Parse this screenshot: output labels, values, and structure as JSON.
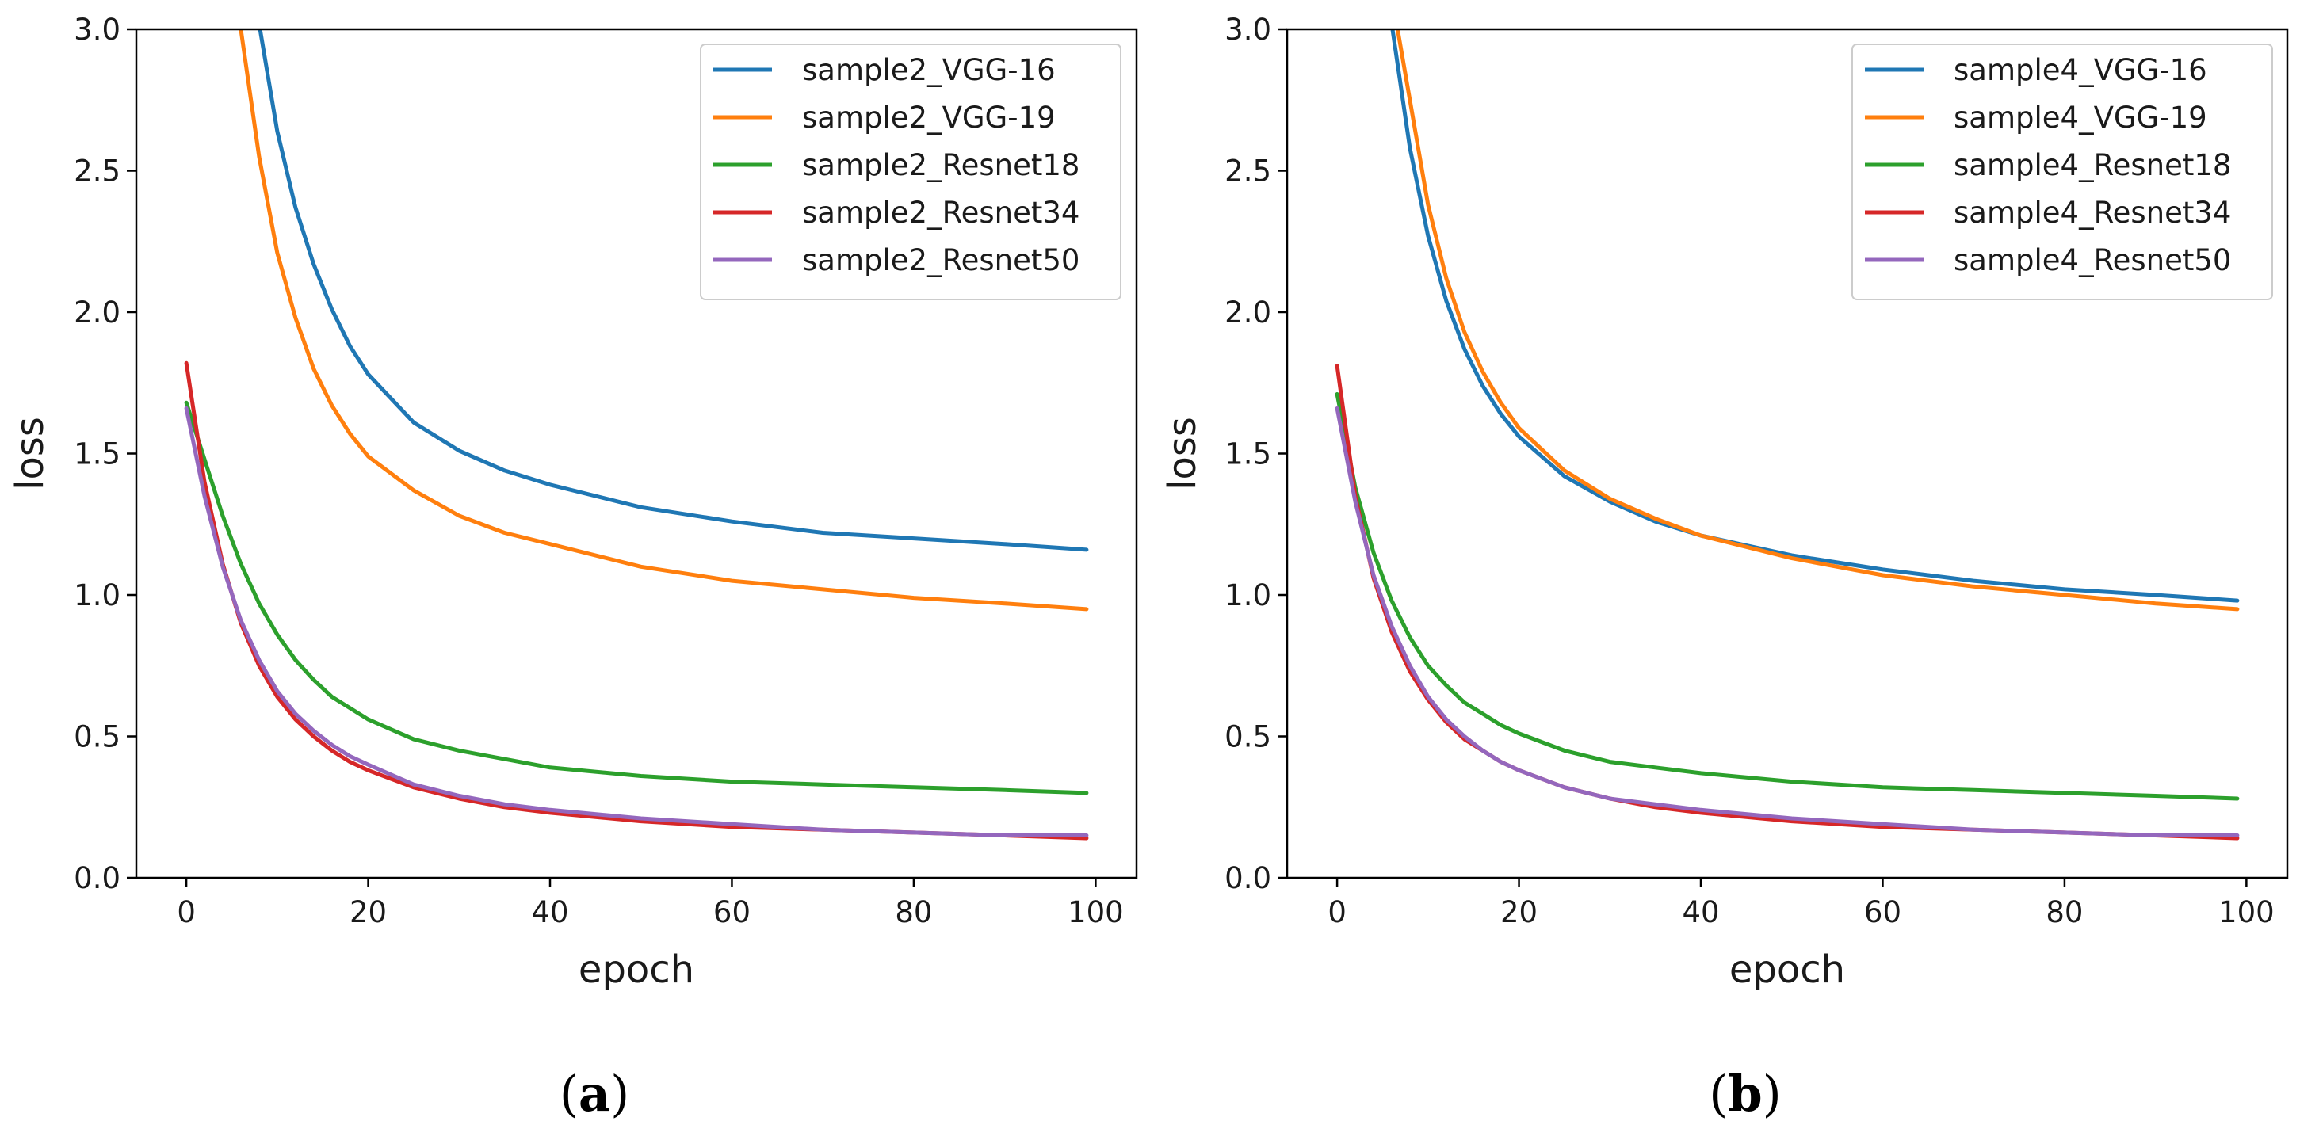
{
  "chart_data": [
    {
      "type": "line",
      "caption_letter": "a",
      "xlabel": "epoch",
      "ylabel": "loss",
      "xlim": [
        -5.5,
        104.5
      ],
      "ylim": [
        0,
        3.0
      ],
      "xticks": [
        0,
        20,
        40,
        60,
        80,
        100
      ],
      "yticks": [
        0.0,
        0.5,
        1.0,
        1.5,
        2.0,
        2.5,
        3.0
      ],
      "ytick_labels": [
        "0.0",
        "0.5",
        "1.0",
        "1.5",
        "2.0",
        "2.5",
        "3.0"
      ],
      "legend_position": "top-right",
      "grid": false,
      "x": [
        0,
        2,
        4,
        6,
        8,
        10,
        12,
        14,
        16,
        18,
        20,
        25,
        30,
        35,
        40,
        50,
        60,
        70,
        80,
        90,
        99
      ],
      "series": [
        {
          "name": "sample2_VGG-16",
          "color": "#1f77b4",
          "values": [
            null,
            null,
            null,
            null,
            3.02,
            2.64,
            2.37,
            2.17,
            2.01,
            1.88,
            1.78,
            1.61,
            1.51,
            1.44,
            1.39,
            1.31,
            1.26,
            1.22,
            1.2,
            1.18,
            1.16
          ]
        },
        {
          "name": "sample2_VGG-19",
          "color": "#ff7f0e",
          "values": [
            null,
            null,
            null,
            3.0,
            2.55,
            2.21,
            1.98,
            1.8,
            1.67,
            1.57,
            1.49,
            1.37,
            1.28,
            1.22,
            1.18,
            1.1,
            1.05,
            1.02,
            0.99,
            0.97,
            0.95
          ]
        },
        {
          "name": "sample2_Resnet18",
          "color": "#2ca02c",
          "values": [
            1.68,
            1.48,
            1.28,
            1.11,
            0.97,
            0.86,
            0.77,
            0.7,
            0.64,
            0.6,
            0.56,
            0.49,
            0.45,
            0.42,
            0.39,
            0.36,
            0.34,
            0.33,
            0.32,
            0.31,
            0.3
          ]
        },
        {
          "name": "sample2_Resnet34",
          "color": "#d62728",
          "values": [
            1.82,
            1.4,
            1.11,
            0.9,
            0.75,
            0.64,
            0.56,
            0.5,
            0.45,
            0.41,
            0.38,
            0.32,
            0.28,
            0.25,
            0.23,
            0.2,
            0.18,
            0.17,
            0.16,
            0.15,
            0.14
          ]
        },
        {
          "name": "sample2_Resnet50",
          "color": "#9467bd",
          "values": [
            1.66,
            1.35,
            1.1,
            0.91,
            0.77,
            0.66,
            0.58,
            0.52,
            0.47,
            0.43,
            0.4,
            0.33,
            0.29,
            0.26,
            0.24,
            0.21,
            0.19,
            0.17,
            0.16,
            0.15,
            0.15
          ]
        }
      ]
    },
    {
      "type": "line",
      "caption_letter": "b",
      "xlabel": "epoch",
      "ylabel": "loss",
      "xlim": [
        -5.5,
        104.5
      ],
      "ylim": [
        0,
        3.0
      ],
      "xticks": [
        0,
        20,
        40,
        60,
        80,
        100
      ],
      "yticks": [
        0.0,
        0.5,
        1.0,
        1.5,
        2.0,
        2.5,
        3.0
      ],
      "ytick_labels": [
        "0.0",
        "0.5",
        "1.0",
        "1.5",
        "2.0",
        "2.5",
        "3.0"
      ],
      "legend_position": "top-right",
      "grid": false,
      "x": [
        0,
        2,
        4,
        6,
        8,
        10,
        12,
        14,
        16,
        18,
        20,
        25,
        30,
        35,
        40,
        50,
        60,
        70,
        80,
        90,
        99
      ],
      "series": [
        {
          "name": "sample4_VGG-16",
          "color": "#1f77b4",
          "values": [
            null,
            null,
            null,
            3.02,
            2.58,
            2.27,
            2.04,
            1.87,
            1.74,
            1.64,
            1.56,
            1.42,
            1.33,
            1.26,
            1.21,
            1.14,
            1.09,
            1.05,
            1.02,
            1.0,
            0.98
          ]
        },
        {
          "name": "sample4_VGG-19",
          "color": "#ff7f0e",
          "values": [
            null,
            null,
            null,
            null,
            2.75,
            2.38,
            2.12,
            1.93,
            1.79,
            1.68,
            1.59,
            1.44,
            1.34,
            1.27,
            1.21,
            1.13,
            1.07,
            1.03,
            1.0,
            0.97,
            0.95
          ]
        },
        {
          "name": "sample4_Resnet18",
          "color": "#2ca02c",
          "values": [
            1.71,
            1.38,
            1.15,
            0.98,
            0.85,
            0.75,
            0.68,
            0.62,
            0.58,
            0.54,
            0.51,
            0.45,
            0.41,
            0.39,
            0.37,
            0.34,
            0.32,
            0.31,
            0.3,
            0.29,
            0.28
          ]
        },
        {
          "name": "sample4_Resnet34",
          "color": "#d62728",
          "values": [
            1.81,
            1.35,
            1.06,
            0.87,
            0.73,
            0.63,
            0.55,
            0.49,
            0.45,
            0.41,
            0.38,
            0.32,
            0.28,
            0.25,
            0.23,
            0.2,
            0.18,
            0.17,
            0.16,
            0.15,
            0.14
          ]
        },
        {
          "name": "sample4_Resnet50",
          "color": "#9467bd",
          "values": [
            1.66,
            1.33,
            1.07,
            0.89,
            0.75,
            0.64,
            0.56,
            0.5,
            0.45,
            0.41,
            0.38,
            0.32,
            0.28,
            0.26,
            0.24,
            0.21,
            0.19,
            0.17,
            0.16,
            0.15,
            0.15
          ]
        }
      ]
    }
  ]
}
